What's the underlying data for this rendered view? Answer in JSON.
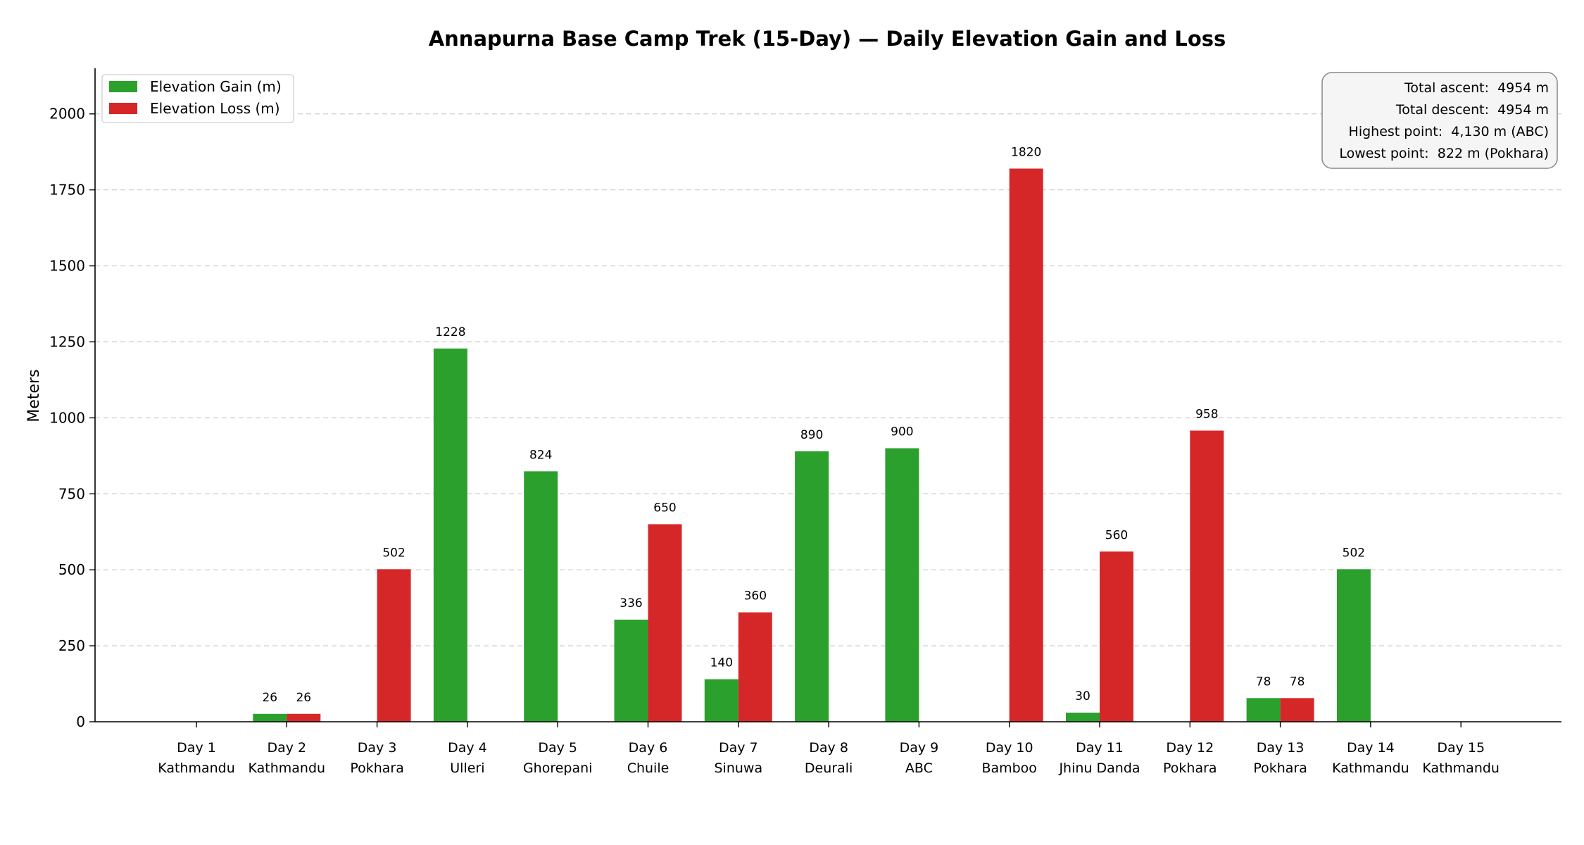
{
  "chart_data": {
    "type": "bar",
    "title": "Annapurna Base Camp Trek (15-Day) — Daily Elevation Gain and Loss",
    "xlabel": "",
    "ylabel": "Meters",
    "ylim": [
      0,
      2150
    ],
    "yticks": [
      0,
      250,
      500,
      750,
      1000,
      1250,
      1500,
      1750,
      2000
    ],
    "grid": "horizontal dashed",
    "legend_position": "top-left",
    "categories": [
      {
        "day": "Day 1",
        "place": "Kathmandu"
      },
      {
        "day": "Day 2",
        "place": "Kathmandu"
      },
      {
        "day": "Day 3",
        "place": "Pokhara"
      },
      {
        "day": "Day 4",
        "place": "Ulleri"
      },
      {
        "day": "Day 5",
        "place": "Ghorepani"
      },
      {
        "day": "Day 6",
        "place": "Chuile"
      },
      {
        "day": "Day 7",
        "place": "Sinuwa"
      },
      {
        "day": "Day 8",
        "place": "Deurali"
      },
      {
        "day": "Day 9",
        "place": "ABC"
      },
      {
        "day": "Day 10",
        "place": "Bamboo"
      },
      {
        "day": "Day 11",
        "place": "Jhinu Danda"
      },
      {
        "day": "Day 12",
        "place": "Pokhara"
      },
      {
        "day": "Day 13",
        "place": "Pokhara"
      },
      {
        "day": "Day 14",
        "place": "Kathmandu"
      },
      {
        "day": "Day 15",
        "place": "Kathmandu"
      }
    ],
    "series": [
      {
        "name": "Elevation Gain (m)",
        "color": "#2ca02c",
        "values": [
          0,
          26,
          0,
          1228,
          824,
          336,
          140,
          890,
          900,
          0,
          30,
          0,
          78,
          502,
          0
        ]
      },
      {
        "name": "Elevation Loss (m)",
        "color": "#d62728",
        "values": [
          0,
          26,
          502,
          0,
          0,
          650,
          360,
          0,
          0,
          1820,
          560,
          958,
          78,
          0,
          0
        ]
      }
    ],
    "stats_box": {
      "position": "top-right",
      "lines": [
        "Total ascent:  4954 m",
        "Total descent:  4954 m",
        "Highest point:  4,130 m (ABC)",
        "Lowest point:  822 m (Pokhara)"
      ]
    }
  }
}
